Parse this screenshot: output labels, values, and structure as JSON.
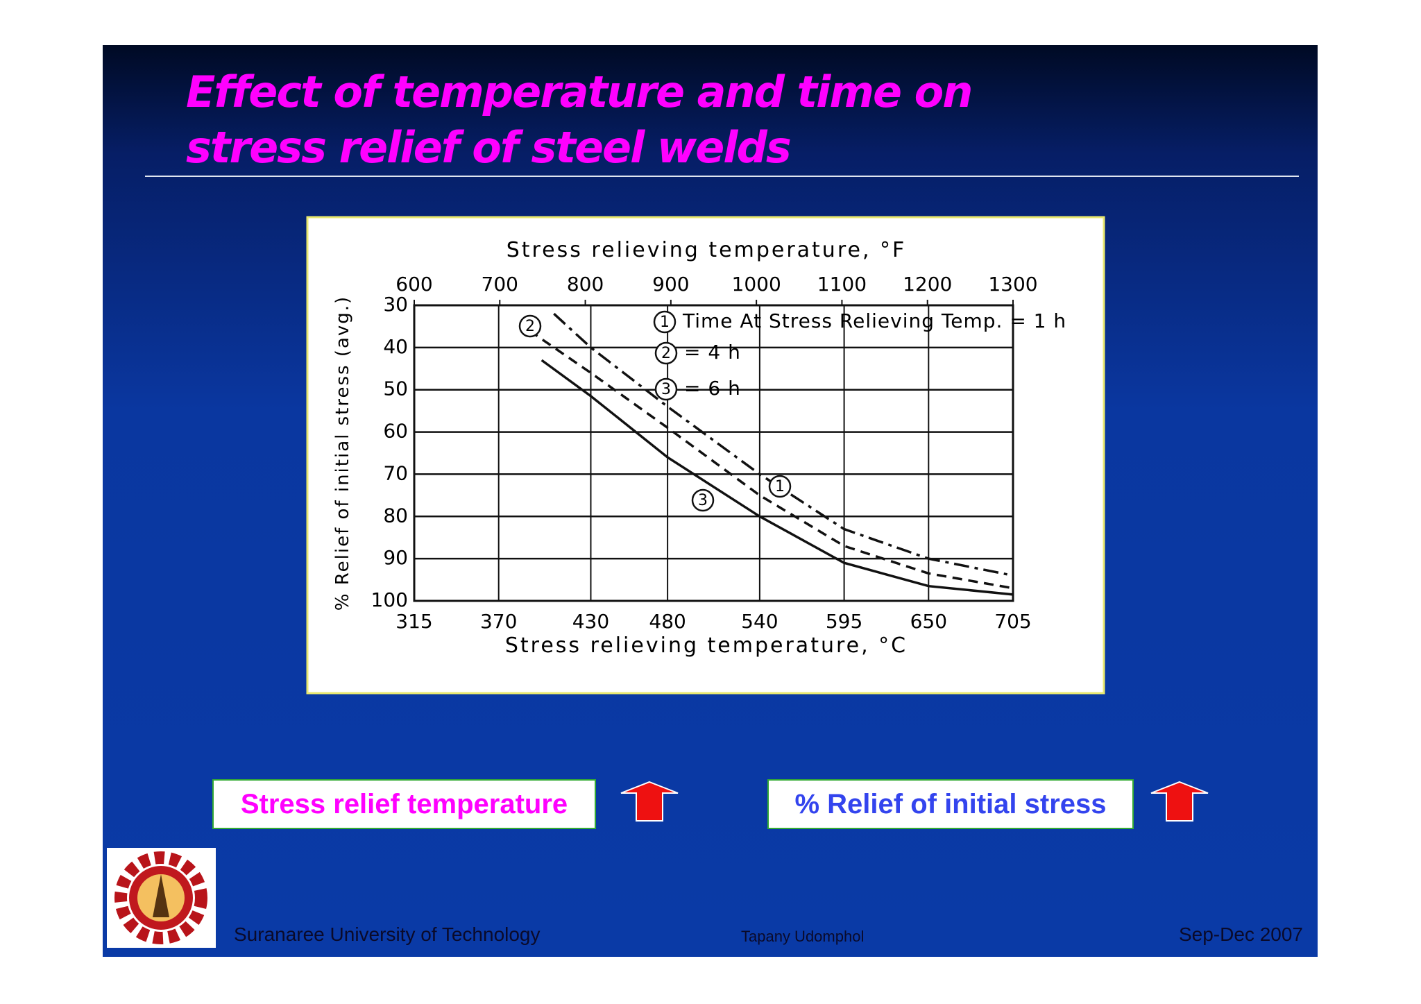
{
  "slide": {
    "title_lines": [
      "Effect of temperature and time on",
      "stress relief of steel welds"
    ],
    "labels": [
      "Stress relief temperature",
      "% Relief of initial stress"
    ],
    "footer": {
      "left": "Suranaree University of Technology",
      "center": "Tapany  Udomphol",
      "right": "Sep-Dec  2007"
    }
  },
  "chart_data": {
    "type": "line",
    "x2_label": "Stress relieving temperature, °F",
    "x_label": "Stress relieving temperature, °C",
    "y_label": "% Relief of initial stress (avg.)",
    "xlim": [
      315,
      705
    ],
    "xticks": [
      315,
      370,
      430,
      480,
      540,
      595,
      650,
      705
    ],
    "x2lim": [
      600,
      1300
    ],
    "x2ticks": [
      600,
      700,
      800,
      900,
      1000,
      1100,
      1200,
      1300
    ],
    "ylim": [
      30,
      100
    ],
    "yticks": [
      30,
      40,
      50,
      60,
      70,
      80,
      90,
      100
    ],
    "y_reversed": true,
    "grid": true,
    "series": [
      {
        "id": "1",
        "name": "Time At Stress Relieving Temp. = 1 h",
        "color": "#111111",
        "dash": "dashdot",
        "x": [
          406,
          430,
          480,
          540,
          595,
          650,
          705
        ],
        "values": [
          32,
          40,
          54,
          70,
          83,
          90,
          94
        ]
      },
      {
        "id": "2",
        "name": "= 4 h",
        "color": "#111111",
        "dash": "dash",
        "x": [
          390,
          430,
          480,
          540,
          595,
          650,
          705
        ],
        "values": [
          36,
          46,
          59,
          75,
          87,
          93.5,
          97
        ]
      },
      {
        "id": "3",
        "name": "= 6 h",
        "color": "#111111",
        "dash": "solid",
        "x": [
          398,
          430,
          480,
          540,
          595,
          650,
          705
        ],
        "values": [
          43,
          51.5,
          66,
          80,
          91,
          96.5,
          98.5
        ]
      }
    ]
  }
}
